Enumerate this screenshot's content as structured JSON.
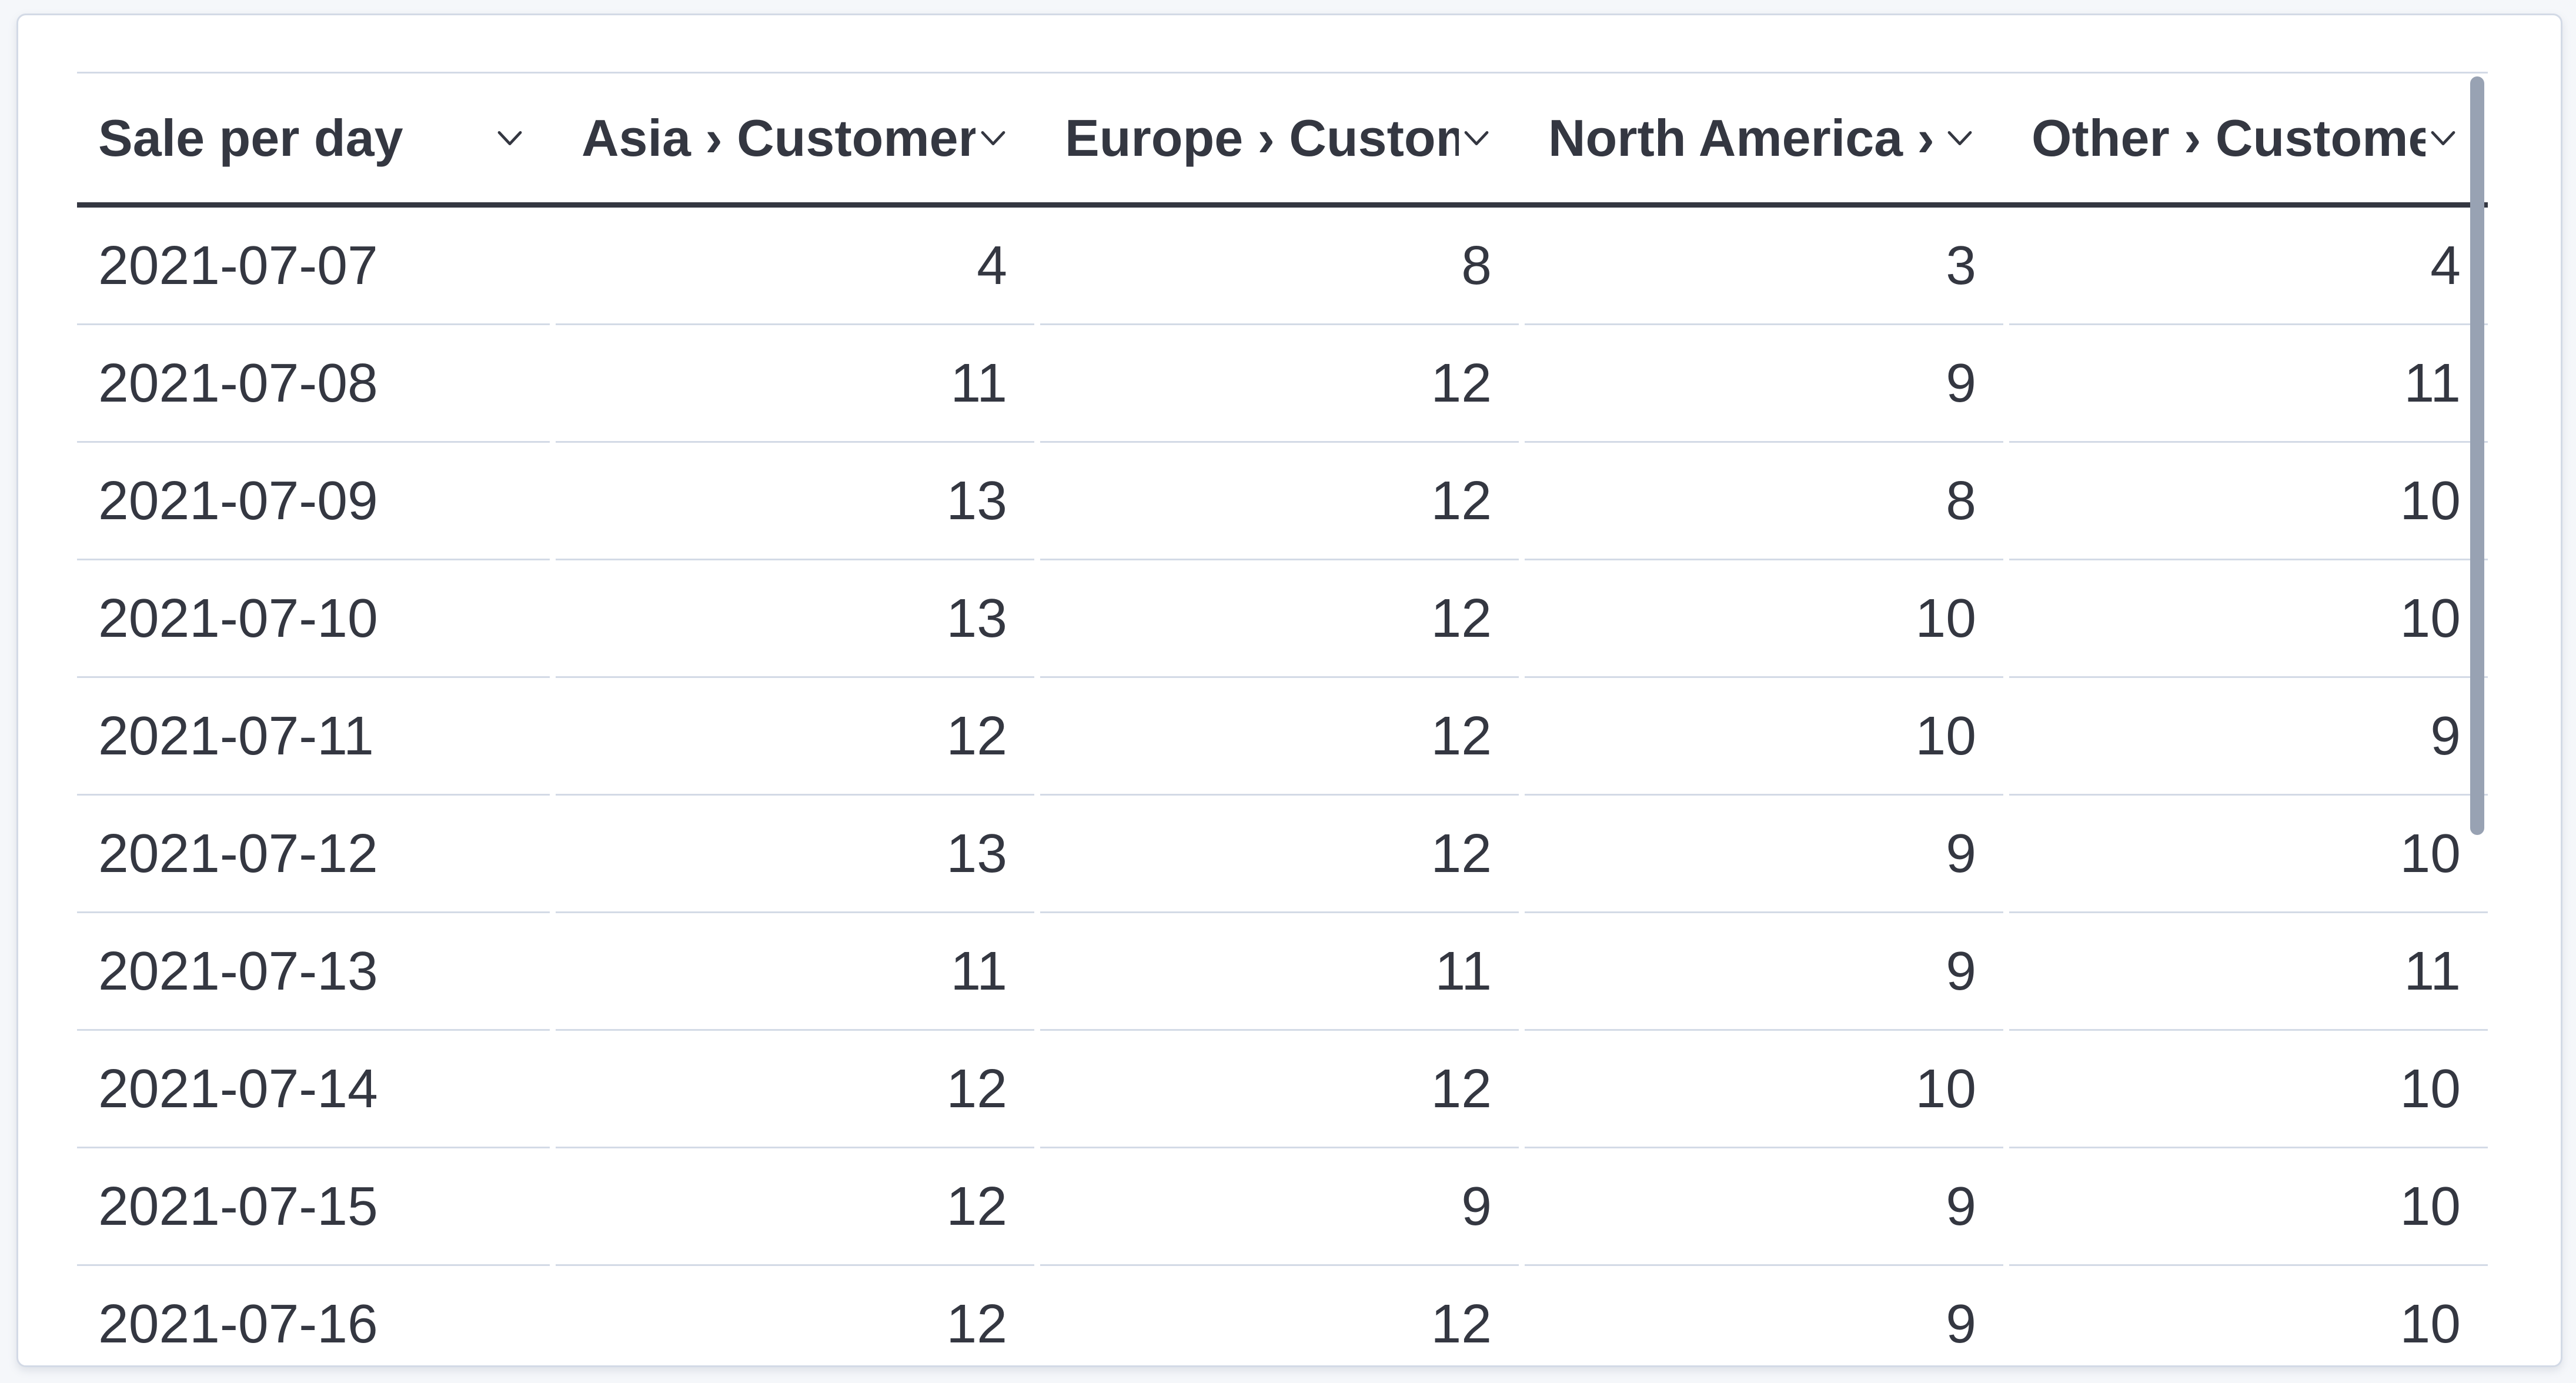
{
  "colors": {
    "page_bg": "#f5f7fa",
    "card_bg": "#ffffff",
    "card_border": "#d3dae6",
    "divider": "#d3dae6",
    "header_border": "#343741",
    "text": "#343741",
    "scrollbar": "#98a2b3"
  },
  "panel": {
    "header": {
      "sort_icon": "chevron-down-icon",
      "columns": [
        {
          "label": "Sale per day",
          "align": "left"
        },
        {
          "label": "Asia › Customers",
          "align": "right"
        },
        {
          "label": "Europe › Customers",
          "align": "right"
        },
        {
          "label": "North America › Customers",
          "align": "right"
        },
        {
          "label": "Other › Customers",
          "align": "right"
        }
      ]
    },
    "rows": [
      [
        "2021-07-07",
        "4",
        "8",
        "3",
        "4"
      ],
      [
        "2021-07-08",
        "11",
        "12",
        "9",
        "11"
      ],
      [
        "2021-07-09",
        "13",
        "12",
        "8",
        "10"
      ],
      [
        "2021-07-10",
        "13",
        "12",
        "10",
        "10"
      ],
      [
        "2021-07-11",
        "12",
        "12",
        "10",
        "9"
      ],
      [
        "2021-07-12",
        "13",
        "12",
        "9",
        "10"
      ],
      [
        "2021-07-13",
        "11",
        "11",
        "9",
        "11"
      ],
      [
        "2021-07-14",
        "12",
        "12",
        "10",
        "10"
      ],
      [
        "2021-07-15",
        "12",
        "9",
        "9",
        "10"
      ],
      [
        "2021-07-16",
        "12",
        "12",
        "9",
        "10"
      ]
    ]
  },
  "chart_data": {
    "type": "table",
    "title": "Sale per day",
    "columns": [
      "Sale per day",
      "Asia › Customers",
      "Europe › Customers",
      "North America › Customers",
      "Other › Customers"
    ],
    "rows": [
      [
        "2021-07-07",
        4,
        8,
        3,
        4
      ],
      [
        "2021-07-08",
        11,
        12,
        9,
        11
      ],
      [
        "2021-07-09",
        13,
        12,
        8,
        10
      ],
      [
        "2021-07-10",
        13,
        12,
        10,
        10
      ],
      [
        "2021-07-11",
        12,
        12,
        10,
        9
      ],
      [
        "2021-07-12",
        13,
        12,
        9,
        10
      ],
      [
        "2021-07-13",
        11,
        11,
        9,
        11
      ],
      [
        "2021-07-14",
        12,
        12,
        10,
        10
      ],
      [
        "2021-07-15",
        12,
        9,
        9,
        10
      ],
      [
        "2021-07-16",
        12,
        12,
        9,
        10
      ]
    ]
  }
}
